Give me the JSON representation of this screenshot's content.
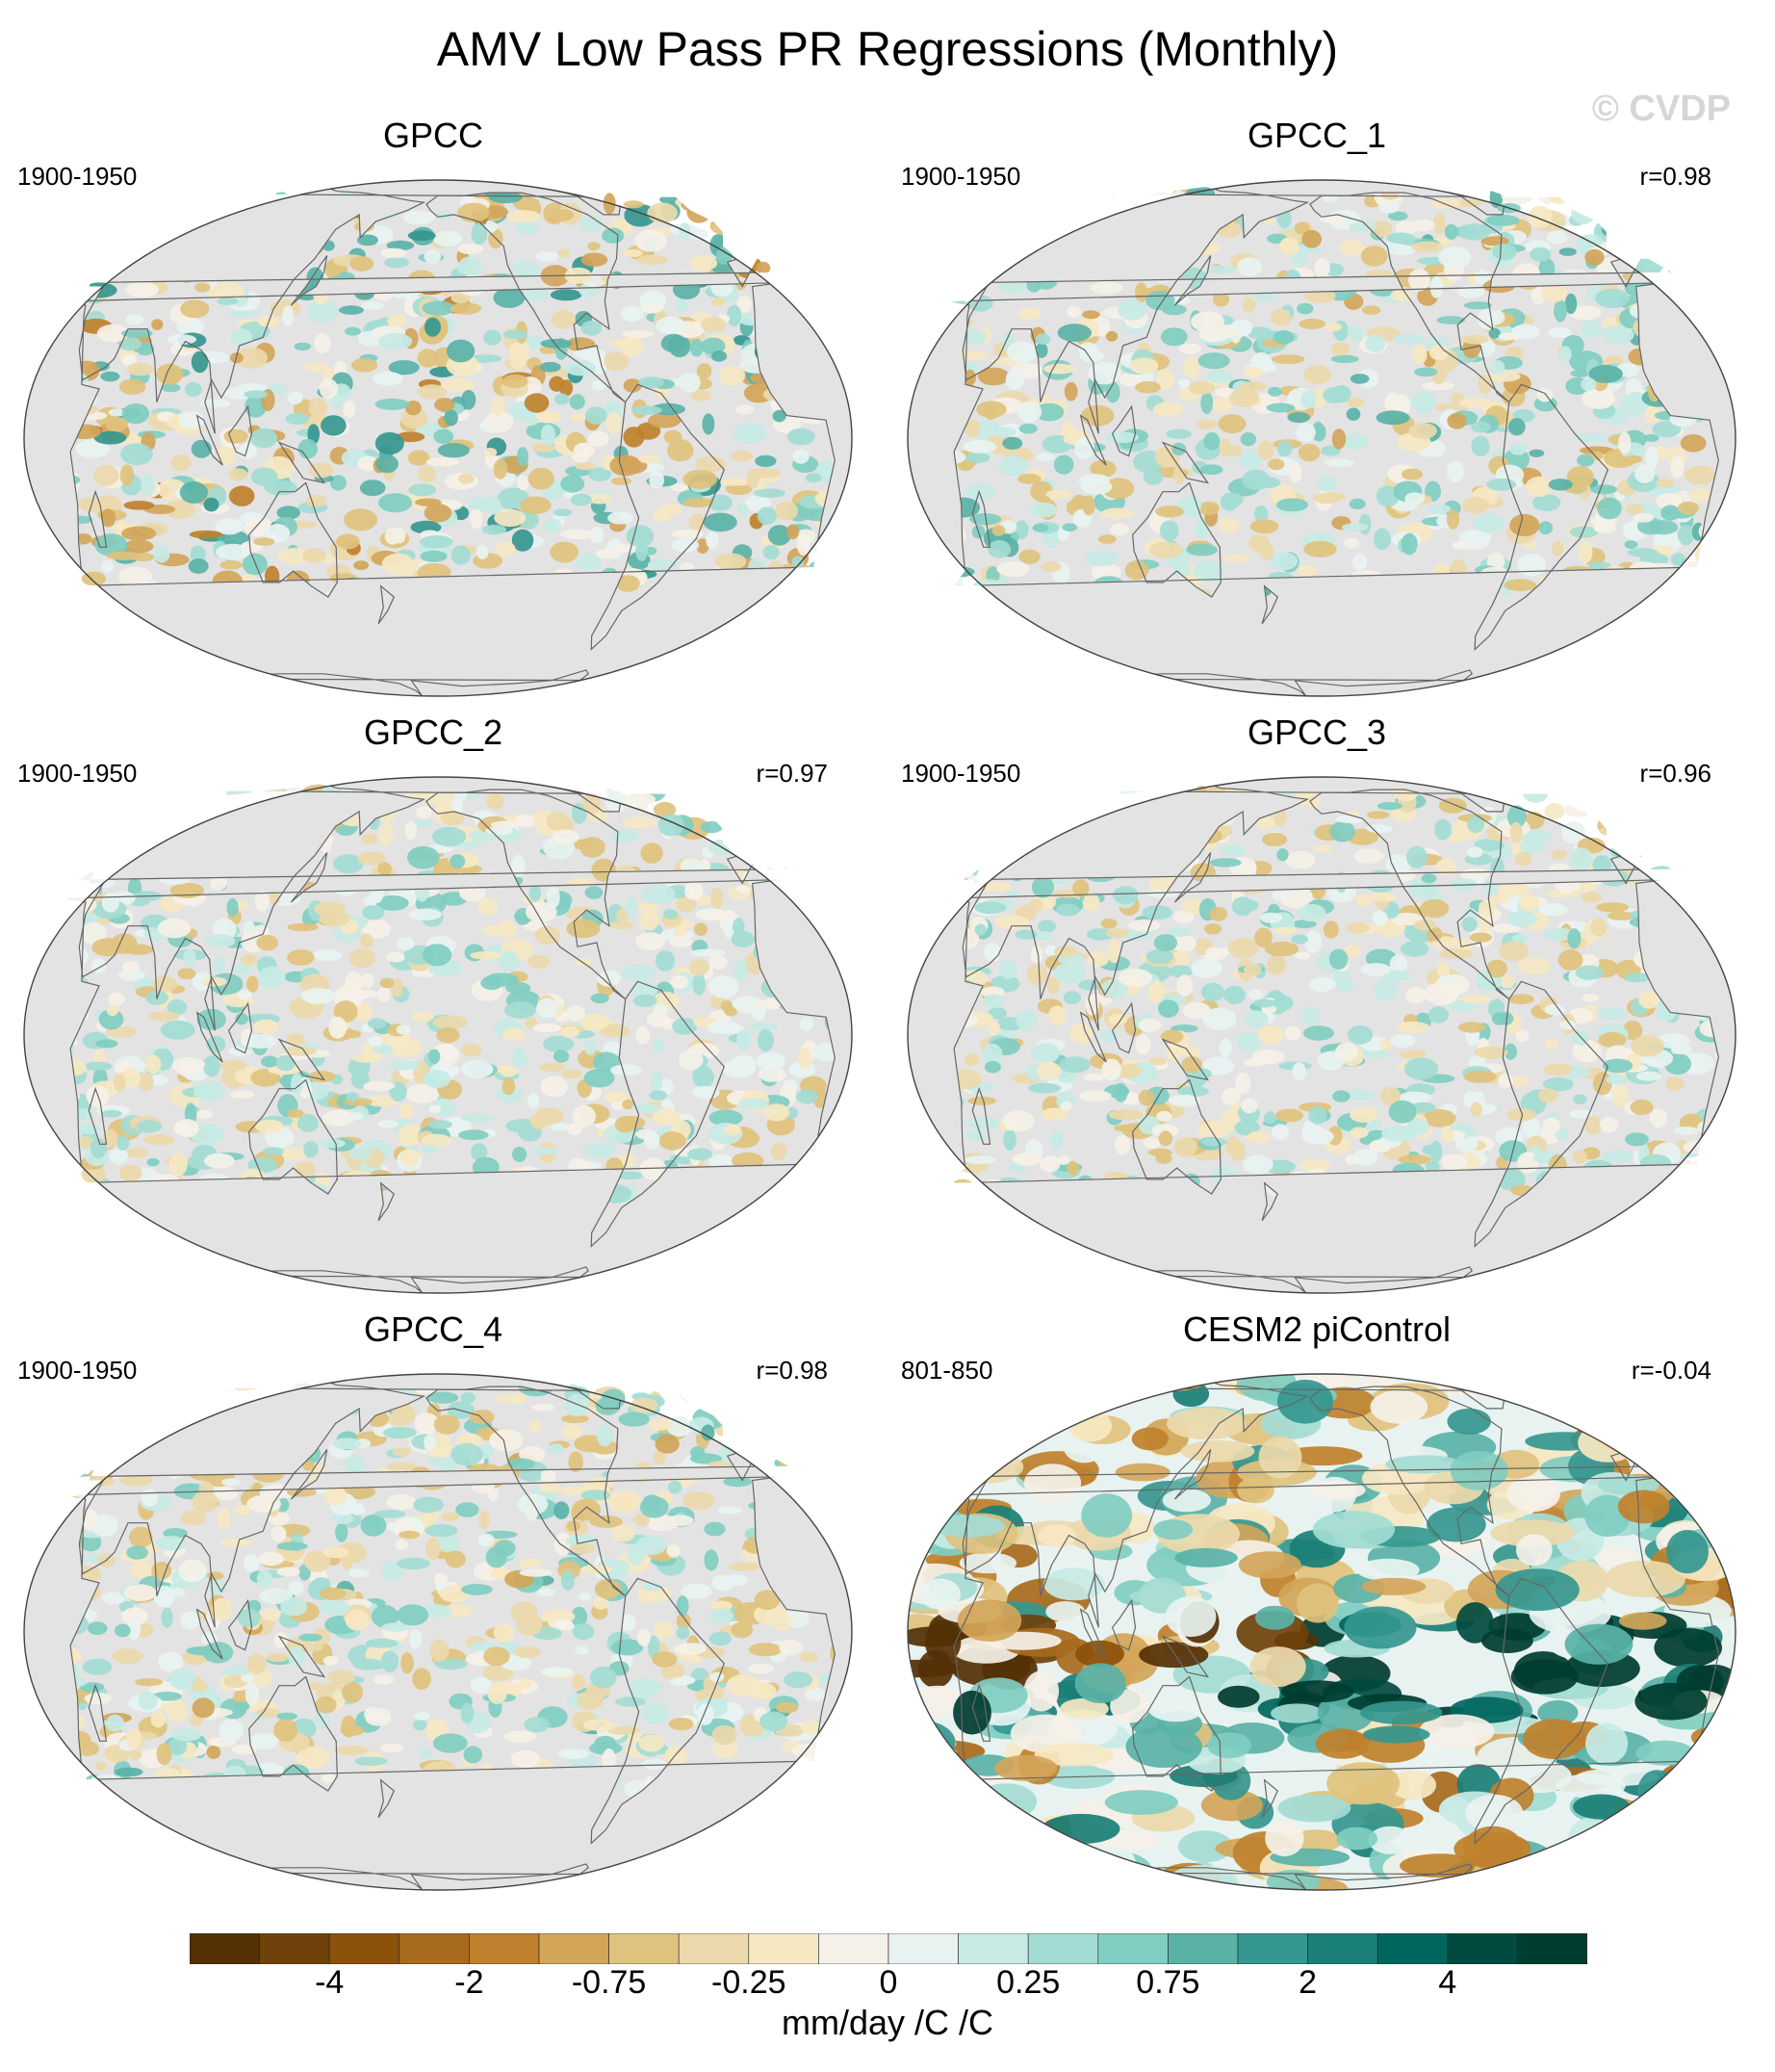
{
  "figure": {
    "title": "AMV Low Pass PR Regressions (Monthly)",
    "watermark": "© CVDP"
  },
  "panels": [
    {
      "title": "GPCC",
      "period": "1900-1950",
      "correlation": "",
      "pattern": "obs",
      "strength": 1.0
    },
    {
      "title": "GPCC_1",
      "period": "1900-1950",
      "correlation": "r=0.98",
      "pattern": "obs",
      "strength": 0.8
    },
    {
      "title": "GPCC_2",
      "period": "1900-1950",
      "correlation": "r=0.97",
      "pattern": "obs",
      "strength": 0.7
    },
    {
      "title": "GPCC_3",
      "period": "1900-1950",
      "correlation": "r=0.96",
      "pattern": "obs",
      "strength": 0.7
    },
    {
      "title": "GPCC_4",
      "period": "1900-1950",
      "correlation": "r=0.98",
      "pattern": "obs",
      "strength": 0.75
    },
    {
      "title": "CESM2 piControl",
      "period": "801-850",
      "correlation": "r=-0.04",
      "pattern": "model",
      "strength": 1.0
    }
  ],
  "colorbar": {
    "unit_label": "mm/day /C /C",
    "colors": [
      "#543005",
      "#6e420a",
      "#8c510a",
      "#a86a1d",
      "#bf812d",
      "#d2a559",
      "#dfc27d",
      "#ecd9ab",
      "#f6e8c3",
      "#f5f1e8",
      "#e8f3f1",
      "#c7eae5",
      "#a3dcd4",
      "#80cdc1",
      "#5ab2a7",
      "#35978f",
      "#1a7f76",
      "#01665e",
      "#014a40",
      "#003c30"
    ],
    "tick_labels": [
      "-4",
      "-2",
      "-0.75",
      "-0.25",
      "0",
      "0.25",
      "0.75",
      "2",
      "4"
    ],
    "tick_boundaries": [
      2,
      4,
      6,
      8,
      10,
      12,
      14,
      16,
      18
    ]
  },
  "map_style": {
    "ocean_missing_color": "#e3e3e3",
    "coast_color": "#666666",
    "frame_color": "#444444"
  }
}
